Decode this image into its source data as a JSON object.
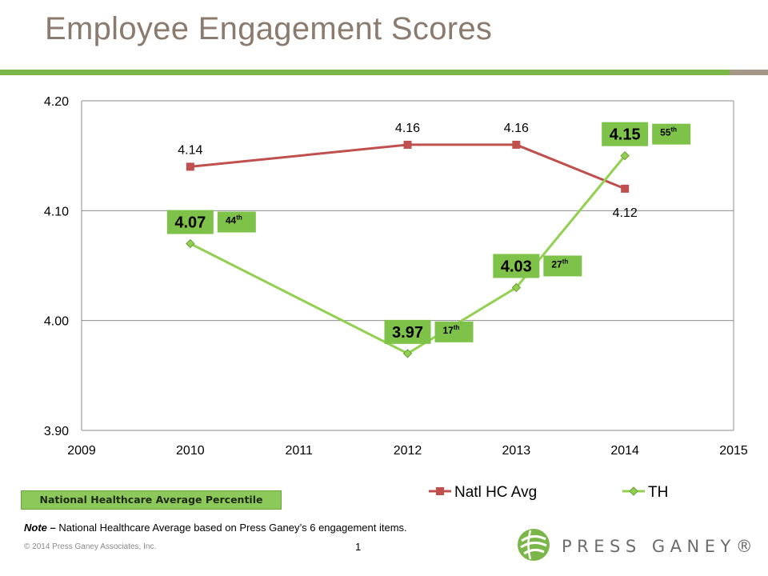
{
  "slide": {
    "title": "Employee Engagement Scores",
    "percentile_key": "National Healthcare Average Percentile",
    "note_lead": "Note –",
    "note_text": "National Healthcare Average based on Press Ganey’s 6 engagement items.",
    "copyright": "© 2014 Press Ganey Associates, Inc.",
    "page_number": "1",
    "logo_text": "PRESS GANEY®"
  },
  "colors": {
    "title": "#8b7b6e",
    "accent_green": "#7ab648",
    "accent_gray": "#a69888",
    "natl_series": "#c0504d",
    "th_series": "#92d050",
    "label_box": "#7fc24a"
  },
  "chart_data": {
    "type": "line",
    "title": "",
    "xlabel": "",
    "ylabel": "",
    "x_ticks": [
      "2009",
      "2010",
      "2011",
      "2012",
      "2013",
      "2014",
      "2015"
    ],
    "y_ticks": [
      "4.20",
      "4.10",
      "4.00",
      "3.90"
    ],
    "xlim": [
      2009,
      2015
    ],
    "ylim": [
      3.9,
      4.2
    ],
    "grid": true,
    "legend_position": "bottom",
    "series": [
      {
        "name": "Natl HC Avg",
        "x": [
          2010,
          2012,
          2013,
          2014
        ],
        "values": [
          4.14,
          4.16,
          4.16,
          4.12
        ],
        "labels": [
          "4.14",
          "4.16",
          "4.16",
          "4.12"
        ],
        "label_pos": [
          "above",
          "above",
          "above",
          "below"
        ]
      },
      {
        "name": "TH",
        "x": [
          2010,
          2012,
          2013,
          2014
        ],
        "values": [
          4.07,
          3.97,
          4.03,
          4.15
        ],
        "labels": [
          "4.07",
          "3.97",
          "4.03",
          "4.15"
        ],
        "percentile_base": [
          "44",
          "17",
          "27",
          "55"
        ],
        "percentile_suffix": [
          "th",
          "th",
          "th",
          "th"
        ]
      }
    ]
  }
}
